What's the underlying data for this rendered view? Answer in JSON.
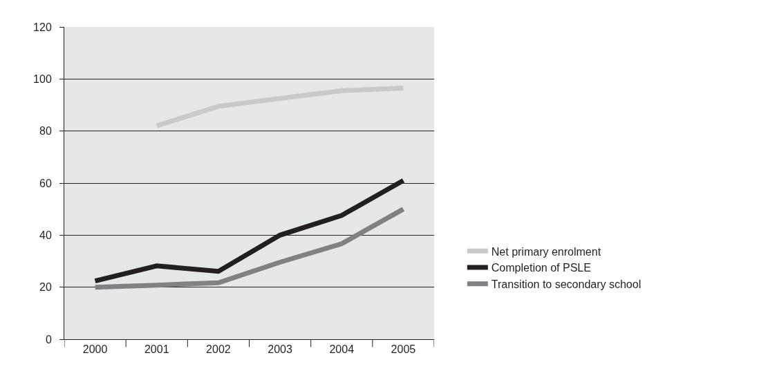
{
  "chart_data": {
    "type": "line",
    "categories": [
      "2000",
      "2001",
      "2002",
      "2003",
      "2004",
      "2005"
    ],
    "series": [
      {
        "name": "Net primary enrolment",
        "color": "#c8c9cb",
        "values": [
          null,
          82,
          89.5,
          92.5,
          95.5,
          96.5
        ]
      },
      {
        "name": "Completion of PSLE",
        "color": "#231f20",
        "values": [
          22.4,
          28.2,
          26.1,
          40,
          47.6,
          61
        ]
      },
      {
        "name": "Transition to secondary school",
        "color": "#808184",
        "values": [
          20,
          20.8,
          21.7,
          29.6,
          36.7,
          50
        ]
      }
    ],
    "ylim": [
      0,
      120
    ],
    "yticks": [
      0,
      20,
      40,
      60,
      80,
      100,
      120
    ],
    "grid": "y",
    "legend": "right",
    "marker": "none",
    "line_style": "solid"
  }
}
